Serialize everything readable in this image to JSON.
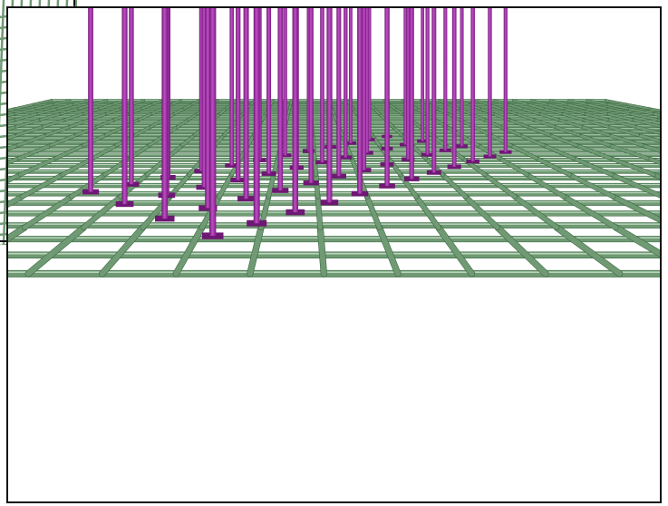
{
  "scene": {
    "kind": "3d-render",
    "subject": "rebar-mesh-with-vertical-studs",
    "colors": {
      "background": "#ffffff",
      "mesh_bar": "#6f9a73",
      "mesh_bar_dark": "#3f6a45",
      "mesh_bar_highlight": "#b9d5bb",
      "stud": "#a02aa6",
      "stud_dark": "#6d1873",
      "stud_highlight": "#d78bdb",
      "frame": "#111111"
    },
    "views": [
      {
        "id": "inset",
        "description_label": "partial-background-view"
      },
      {
        "id": "main",
        "description_label": "perspective-main-view"
      }
    ],
    "mesh": {
      "rows": 34,
      "cols": 30
    },
    "studs": {
      "rows": 4,
      "columns_per_row": 12
    }
  }
}
